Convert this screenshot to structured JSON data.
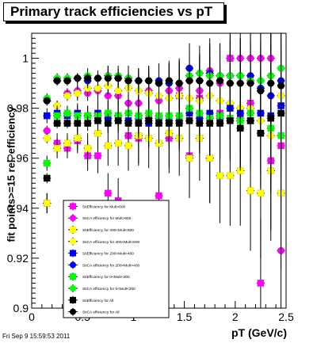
{
  "title": "Primary track efficiencies vs pT",
  "footer": "Fri Sep  9 15:59:53 2011",
  "chart_data": {
    "type": "scatter",
    "title": "Primary track efficiencies vs pT",
    "xlabel": "pT (GeV/c)",
    "ylabel": "fit points>=15 rel. efficiency",
    "xlim": [
      0,
      2.5
    ],
    "ylim": [
      0.9,
      1.01
    ],
    "x_ticks": [
      "0",
      "0.5",
      "1",
      "1.5",
      "2",
      "2.5"
    ],
    "y_ticks": [
      "0.9",
      "0.92",
      "0.94",
      "0.96",
      "0.98",
      "1"
    ],
    "legend_position": "bottom-left",
    "x": [
      0.15,
      0.25,
      0.35,
      0.45,
      0.55,
      0.65,
      0.75,
      0.85,
      0.95,
      1.05,
      1.15,
      1.25,
      1.35,
      1.45,
      1.55,
      1.65,
      1.75,
      1.85,
      1.95,
      2.05,
      2.15,
      2.25,
      2.35,
      2.45
    ],
    "series": [
      {
        "name": "StiEfficiency  for Mult>600",
        "color": "#ff00ff",
        "marker": "square",
        "values": [
          0.942,
          0.966,
          0.964,
          0.967,
          0.961,
          0.961,
          0.946,
          0.943,
          0.969,
          0.968,
          0.976,
          0.945,
          0.968,
          0.985,
          0.961,
          0.984,
          0.96,
          0.978,
          1.0,
          0.976,
          0.982,
          0.91,
          0.959,
          0.965
        ],
        "errors": [
          0.004,
          0.004,
          0.004,
          0.005,
          0.006,
          0.007,
          0.008,
          0.009,
          0.01,
          0.011,
          0.012,
          0.013,
          0.014,
          0.015,
          0.016,
          0.017,
          0.018,
          0.019,
          0.02,
          0.022,
          0.024,
          0.026,
          0.028,
          0.03
        ]
      },
      {
        "name": "StiCA efficiency  for Mult>600",
        "color": "#ff00ff",
        "marker": "circle",
        "values": [
          0.971,
          0.981,
          0.986,
          0.987,
          0.986,
          0.987,
          0.985,
          0.985,
          0.982,
          0.982,
          0.987,
          0.983,
          0.987,
          0.988,
          0.991,
          0.987,
          0.995,
          0.99,
          1.0,
          1.0,
          1.0,
          1.0,
          1.0,
          0.923
        ],
        "errors": [
          0.002,
          0.002,
          0.002,
          0.003,
          0.003,
          0.004,
          0.004,
          0.005,
          0.006,
          0.006,
          0.007,
          0.008,
          0.009,
          0.01,
          0.011,
          0.012,
          0.013,
          0.014,
          0.015,
          0.017,
          0.019,
          0.021,
          0.023,
          0.026
        ]
      },
      {
        "name": "StiEfficiency  for 400<Mult<600",
        "color": "#ffff00",
        "marker": "square",
        "values": [
          0.942,
          0.964,
          0.966,
          0.968,
          0.964,
          0.97,
          0.965,
          0.966,
          0.965,
          0.969,
          0.968,
          0.966,
          0.97,
          0.968,
          0.96,
          0.968,
          0.96,
          0.953,
          0.953,
          0.955,
          0.947,
          0.946,
          0.955,
          0.946
        ],
        "errors": [
          0.004,
          0.004,
          0.004,
          0.005,
          0.006,
          0.007,
          0.008,
          0.009,
          0.01,
          0.011,
          0.012,
          0.013,
          0.014,
          0.015,
          0.016,
          0.017,
          0.018,
          0.019,
          0.02,
          0.022,
          0.024,
          0.026,
          0.028,
          0.03
        ]
      },
      {
        "name": "StiCA efficiency  for 400<Mult<600",
        "color": "#ffff00",
        "marker": "circle",
        "values": [
          0.968,
          0.981,
          0.985,
          0.986,
          0.988,
          0.988,
          0.989,
          0.987,
          0.988,
          0.987,
          0.986,
          0.985,
          0.984,
          0.985,
          0.984,
          0.983,
          0.985,
          0.983,
          0.982,
          0.98,
          0.98,
          0.975,
          0.969,
          0.985
        ],
        "errors": [
          0.002,
          0.002,
          0.002,
          0.003,
          0.003,
          0.004,
          0.004,
          0.005,
          0.006,
          0.006,
          0.007,
          0.008,
          0.009,
          0.01,
          0.011,
          0.012,
          0.013,
          0.014,
          0.015,
          0.017,
          0.019,
          0.021,
          0.023,
          0.026
        ]
      },
      {
        "name": "StiEfficiency  for 200<Mult<400",
        "color": "#0000ff",
        "marker": "square",
        "values": [
          0.977,
          0.978,
          0.977,
          0.978,
          0.977,
          0.978,
          0.976,
          0.977,
          0.975,
          0.976,
          0.974,
          0.976,
          0.975,
          0.975,
          0.978,
          0.976,
          0.978,
          0.976,
          0.98,
          0.978,
          0.975,
          0.978,
          0.977,
          0.981
        ],
        "errors": [
          0.003,
          0.003,
          0.003,
          0.004,
          0.004,
          0.005,
          0.005,
          0.006,
          0.007,
          0.008,
          0.009,
          0.01,
          0.011,
          0.012,
          0.013,
          0.014,
          0.015,
          0.016,
          0.017,
          0.018,
          0.02,
          0.022,
          0.024,
          0.026
        ]
      },
      {
        "name": "StiCA efficiency  for 200<Mult<400",
        "color": "#0000ff",
        "marker": "circle",
        "values": [
          0.983,
          0.991,
          0.991,
          0.992,
          0.991,
          0.992,
          0.993,
          0.992,
          0.992,
          0.991,
          0.991,
          0.991,
          0.99,
          0.99,
          0.996,
          0.991,
          0.994,
          0.993,
          0.993,
          0.993,
          0.993,
          0.988,
          0.985,
          0.991
        ],
        "errors": [
          0.002,
          0.002,
          0.002,
          0.002,
          0.003,
          0.003,
          0.004,
          0.004,
          0.005,
          0.005,
          0.006,
          0.007,
          0.008,
          0.009,
          0.01,
          0.011,
          0.012,
          0.013,
          0.014,
          0.015,
          0.017,
          0.019,
          0.021,
          0.023
        ]
      },
      {
        "name": "StiEfficiency  for 0<Mult<200",
        "color": "#00ff00",
        "marker": "square",
        "values": [
          0.958,
          0.977,
          0.978,
          0.977,
          0.977,
          0.977,
          0.978,
          0.977,
          0.978,
          0.977,
          0.978,
          0.977,
          0.977,
          0.977,
          0.98,
          0.978,
          0.976,
          0.977,
          0.976,
          0.975,
          0.978,
          0.97,
          0.972,
          0.969
        ],
        "errors": [
          0.003,
          0.003,
          0.003,
          0.004,
          0.004,
          0.005,
          0.005,
          0.006,
          0.007,
          0.008,
          0.009,
          0.01,
          0.011,
          0.012,
          0.013,
          0.014,
          0.015,
          0.016,
          0.017,
          0.018,
          0.02,
          0.022,
          0.024,
          0.026
        ]
      },
      {
        "name": "StiCA efficiency  for 0<Mult<200",
        "color": "#00ff00",
        "marker": "circle",
        "values": [
          0.984,
          0.992,
          0.992,
          0.992,
          0.993,
          0.992,
          0.993,
          0.993,
          0.992,
          0.991,
          0.991,
          0.99,
          0.991,
          0.99,
          0.993,
          0.994,
          0.993,
          0.993,
          0.993,
          0.993,
          0.991,
          0.991,
          0.993,
          0.996
        ],
        "errors": [
          0.002,
          0.002,
          0.002,
          0.002,
          0.003,
          0.003,
          0.004,
          0.004,
          0.005,
          0.005,
          0.006,
          0.007,
          0.008,
          0.009,
          0.01,
          0.011,
          0.012,
          0.013,
          0.014,
          0.015,
          0.017,
          0.019,
          0.021,
          0.023
        ]
      },
      {
        "name": "StiEfficiency  for All",
        "color": "#000000",
        "marker": "square",
        "values": [
          0.952,
          0.974,
          0.974,
          0.974,
          0.974,
          0.975,
          0.974,
          0.975,
          0.974,
          0.974,
          0.975,
          0.974,
          0.974,
          0.974,
          0.975,
          0.974,
          0.974,
          0.974,
          0.975,
          0.972,
          0.975,
          0.97,
          0.976,
          0.978
        ],
        "errors": [
          0.002,
          0.002,
          0.002,
          0.003,
          0.003,
          0.004,
          0.004,
          0.005,
          0.006,
          0.006,
          0.007,
          0.008,
          0.009,
          0.01,
          0.011,
          0.012,
          0.013,
          0.014,
          0.015,
          0.017,
          0.019,
          0.021,
          0.023,
          0.026
        ]
      },
      {
        "name": "StiCA efficiency  for All",
        "color": "#000000",
        "marker": "circle",
        "values": [
          0.983,
          0.991,
          0.991,
          0.992,
          0.992,
          0.992,
          0.992,
          0.992,
          0.991,
          0.991,
          0.991,
          0.99,
          0.991,
          0.99,
          0.991,
          0.991,
          0.99,
          0.991,
          0.99,
          0.99,
          0.99,
          0.987,
          0.99,
          0.989
        ],
        "errors": [
          0.001,
          0.001,
          0.001,
          0.002,
          0.002,
          0.002,
          0.003,
          0.003,
          0.004,
          0.004,
          0.005,
          0.006,
          0.007,
          0.008,
          0.009,
          0.01,
          0.011,
          0.012,
          0.013,
          0.014,
          0.016,
          0.018,
          0.02,
          0.022
        ]
      }
    ]
  }
}
